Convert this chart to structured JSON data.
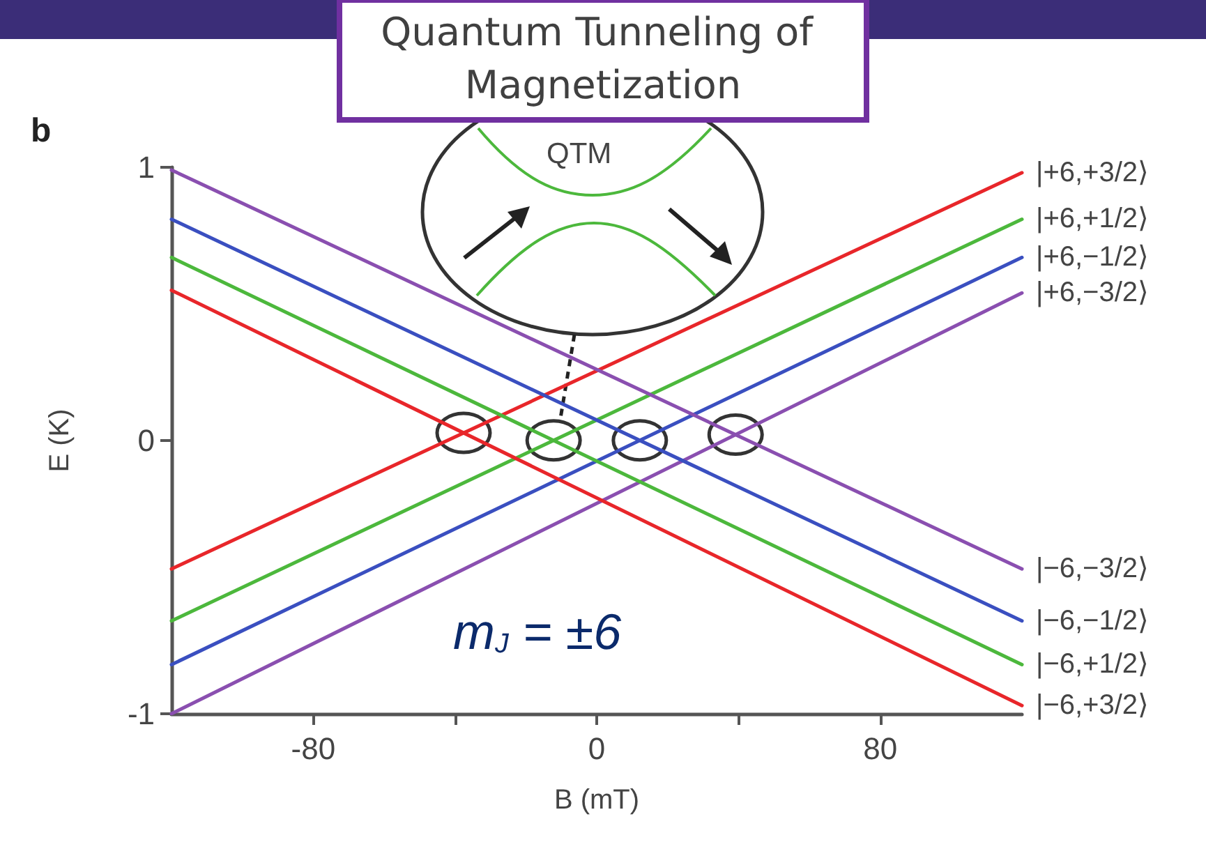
{
  "chart_data": {
    "type": "line",
    "title": "Quantum Tunneling of Magnetization",
    "xlabel": "B (mT)",
    "ylabel": "E (K)",
    "x": [
      -120,
      120
    ],
    "xlim": [
      -120,
      120
    ],
    "ylim": [
      -1,
      1
    ],
    "xticks": [
      -80,
      {
        "value": -40,
        "label": null
      },
      0,
      {
        "value": 40,
        "label": null
      },
      80
    ],
    "yticks": [
      -1,
      0,
      1
    ],
    "grid": false,
    "legend": false,
    "marker": "none",
    "line_style": "solid",
    "series": [
      {
        "name": "|+6,+3/2⟩",
        "color": "#e8262a",
        "values": [
          -0.47,
          0.98
        ]
      },
      {
        "name": "|+6,+1/2⟩",
        "color": "#4cb83c",
        "values": [
          -0.66,
          0.81
        ]
      },
      {
        "name": "|+6,−1/2⟩",
        "color": "#3a4fc0",
        "values": [
          -0.82,
          0.67
        ]
      },
      {
        "name": "|+6,−3/2⟩",
        "color": "#8a4fb0",
        "values": [
          -1.0,
          0.54
        ]
      },
      {
        "name": "|−6,−3/2⟩",
        "color": "#8a4fb0",
        "values": [
          0.99,
          -0.47
        ]
      },
      {
        "name": "|−6,−1/2⟩",
        "color": "#3a4fc0",
        "values": [
          0.81,
          -0.66
        ]
      },
      {
        "name": "|−6,+1/2⟩",
        "color": "#4cb83c",
        "values": [
          0.67,
          -0.82
        ]
      },
      {
        "name": "|−6,+3/2⟩",
        "color": "#e8262a",
        "values": [
          0.55,
          -0.97
        ]
      }
    ],
    "annotations": [
      "b",
      "QTM",
      "m$_{J}$ = ±6"
    ]
  }
}
